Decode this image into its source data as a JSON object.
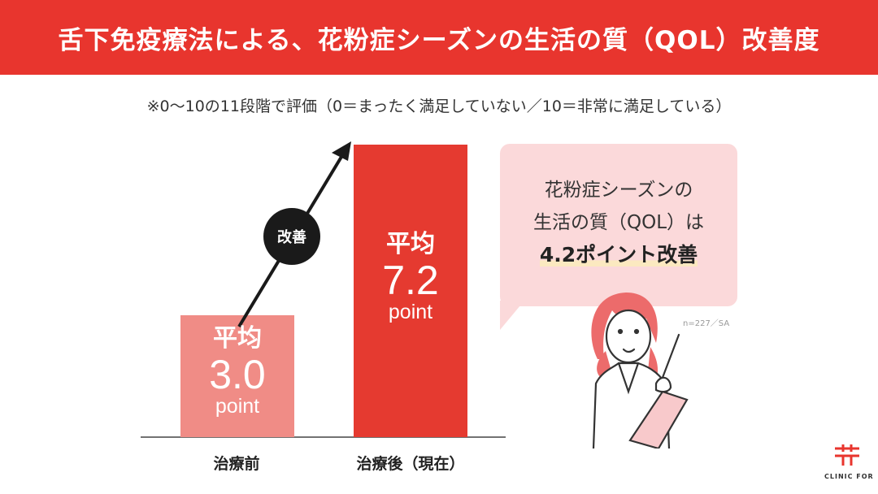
{
  "header": {
    "title": "舌下免疫療法による、花粉症シーズンの生活の質（QOL）改善度"
  },
  "note": "※0〜10の11段階で評価（0＝まったく満足していない／10＝非常に満足している）",
  "chart_data": {
    "type": "bar",
    "categories": [
      "治療前",
      "治療後（現在）"
    ],
    "values": [
      3.0,
      7.2
    ],
    "ylim": [
      0,
      10
    ],
    "bar_colors": [
      "#f08c86",
      "#e53a30"
    ],
    "data_labels": [
      {
        "prefix": "平均",
        "value": "3.0",
        "unit": "point"
      },
      {
        "prefix": "平均",
        "value": "7.2",
        "unit": "point"
      }
    ],
    "annotation": "改善",
    "grid": false
  },
  "callout": {
    "line1": "花粉症シーズンの",
    "line2": "生活の質（QOL）は",
    "line3": "4.2ポイント改善"
  },
  "sample": "n=227／SA",
  "logo": {
    "text": "CLINIC FOR",
    "color": "#e8352e"
  },
  "colors": {
    "accent": "#e8352e",
    "bubble": "#fbd9da"
  }
}
